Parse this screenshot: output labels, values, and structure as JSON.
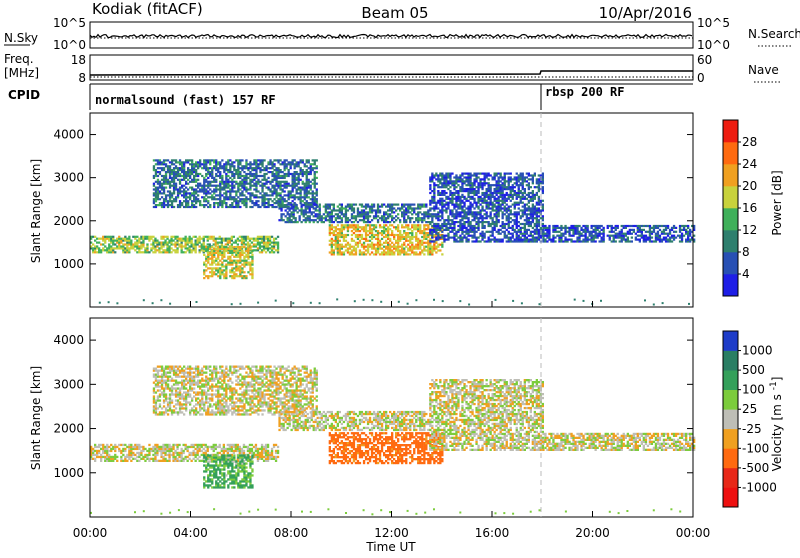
{
  "header": {
    "station": "Kodiak (fitACF)",
    "beam": "Beam 05",
    "date": "10/Apr/2016"
  },
  "top_panels": {
    "nsky_label": "N.Sky",
    "nsearch_label": "N.Search",
    "nsky_ticks": [
      "10^5",
      "10^0"
    ],
    "nsearch_ticks": [
      "10^5",
      "10^0"
    ],
    "freq_label_1": "Freq.",
    "freq_label_2": "[MHz]",
    "freq_ticks": [
      "18",
      "8"
    ],
    "nave_label": "Nave",
    "nave_ticks": [
      "60",
      "0"
    ],
    "cpid_label": "CPID",
    "cpid_segments": [
      {
        "label": "normalsound (fast) 157 RF",
        "start_hour": 0
      },
      {
        "label": "rbsp 200 RF",
        "start_hour": 18
      }
    ]
  },
  "chart_data": [
    {
      "type": "heatmap",
      "title": "",
      "xlabel": "",
      "ylabel": "Slant Range [km]",
      "xlim": [
        0,
        24
      ],
      "ylim": [
        0,
        4500
      ],
      "y_ticks": [
        "1000",
        "2000",
        "3000",
        "4000"
      ],
      "colorbar": {
        "label": "Power [dB]",
        "tick_labels": [
          "4",
          "8",
          "12",
          "16",
          "20",
          "24",
          "28"
        ],
        "colors": [
          "#1e1ee6",
          "#2850b4",
          "#2e7f6e",
          "#3fb05a",
          "#c8d23c",
          "#f0a020",
          "#ff6a10",
          "#ee1c10"
        ]
      },
      "echo_regions": [
        {
          "t0": 0.0,
          "t1": 7.5,
          "r0": 1250,
          "r1": 1650,
          "level": 16
        },
        {
          "t0": 4.5,
          "t1": 6.5,
          "r0": 650,
          "r1": 1400,
          "level": 18
        },
        {
          "t0": 2.5,
          "t1": 9.0,
          "r0": 2300,
          "r1": 3400,
          "level": 8
        },
        {
          "t0": 7.5,
          "t1": 13.5,
          "r0": 1950,
          "r1": 2400,
          "level": 8
        },
        {
          "t0": 9.5,
          "t1": 14.0,
          "r0": 1200,
          "r1": 1900,
          "level": 20
        },
        {
          "t0": 13.5,
          "t1": 18.0,
          "r0": 1500,
          "r1": 3100,
          "level": 6
        },
        {
          "t0": 18.0,
          "t1": 24.0,
          "r0": 1500,
          "r1": 1900,
          "level": 6
        }
      ],
      "ground_scatter_near_range_km": 150
    },
    {
      "type": "heatmap",
      "title": "",
      "xlabel": "Time UT",
      "ylabel": "Slant Range [km]",
      "xlim": [
        0,
        24
      ],
      "ylim": [
        0,
        4500
      ],
      "x_ticks": [
        "00:00",
        "04:00",
        "08:00",
        "12:00",
        "16:00",
        "20:00",
        "00:00"
      ],
      "y_ticks": [
        "1000",
        "2000",
        "3000",
        "4000"
      ],
      "colorbar": {
        "label": "Velocity [m s^-1]",
        "tick_labels": [
          "1000",
          "500",
          "100",
          "25",
          "-25",
          "-100",
          "-500",
          "-1000"
        ],
        "colors": [
          "#1e3cc8",
          "#2a7e64",
          "#34a05a",
          "#7ccc3c",
          "#bebeb6",
          "#f0a020",
          "#ff6a10",
          "#e82818",
          "#ee1010"
        ]
      },
      "echo_regions": [
        {
          "t0": 0.0,
          "t1": 7.5,
          "r0": 1250,
          "r1": 1650,
          "velocity": 0
        },
        {
          "t0": 4.5,
          "t1": 6.5,
          "r0": 650,
          "r1": 1400,
          "velocity": 80
        },
        {
          "t0": 2.5,
          "t1": 9.0,
          "r0": 2300,
          "r1": 3400,
          "velocity": 0
        },
        {
          "t0": 7.5,
          "t1": 13.5,
          "r0": 1950,
          "r1": 2400,
          "velocity": 0
        },
        {
          "t0": 9.5,
          "t1": 14.0,
          "r0": 1200,
          "r1": 1900,
          "velocity": -150
        },
        {
          "t0": 13.5,
          "t1": 18.0,
          "r0": 1500,
          "r1": 3100,
          "velocity": 0
        },
        {
          "t0": 18.0,
          "t1": 24.0,
          "r0": 1500,
          "r1": 1900,
          "velocity": 0
        }
      ]
    }
  ]
}
